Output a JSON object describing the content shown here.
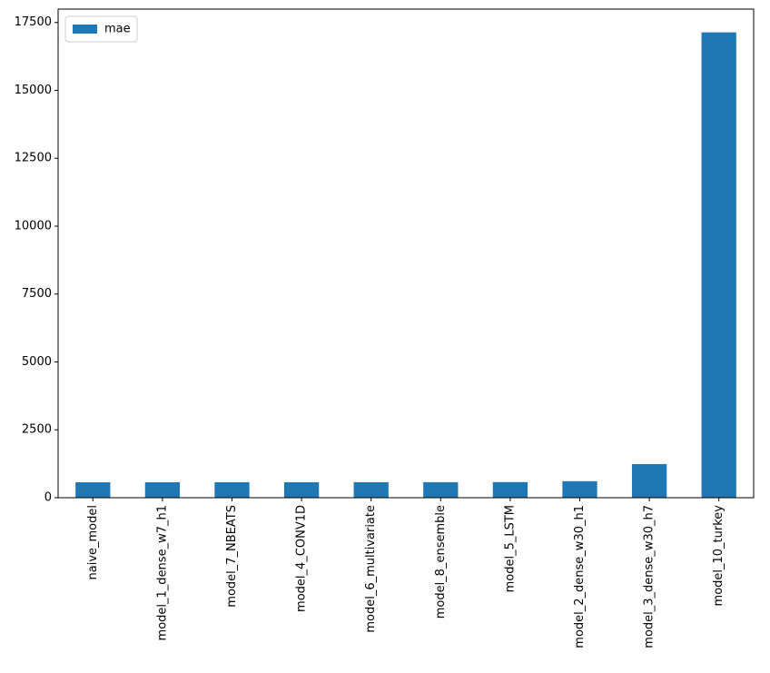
{
  "chart_data": {
    "type": "bar",
    "title": "",
    "xlabel": "",
    "ylabel": "",
    "categories": [
      "naive_model",
      "model_1_dense_w7_h1",
      "model_7_NBEATS",
      "model_4_CONV1D",
      "model_6_multivariate",
      "model_8_ensemble",
      "model_5_LSTM",
      "model_2_dense_w30_h1",
      "model_3_dense_w30_h7",
      "model_10_turkey"
    ],
    "series": [
      {
        "name": "mae",
        "color": "#1f77b4",
        "values": [
          567,
          568,
          570,
          570,
          571,
          572,
          575,
          608,
          1237,
          17136
        ]
      }
    ],
    "ylim": [
      0,
      17993
    ],
    "yticks": [
      0,
      2500,
      5000,
      7500,
      10000,
      12500,
      15000,
      17500
    ],
    "grid": false,
    "legend": {
      "position": "top-left"
    }
  }
}
